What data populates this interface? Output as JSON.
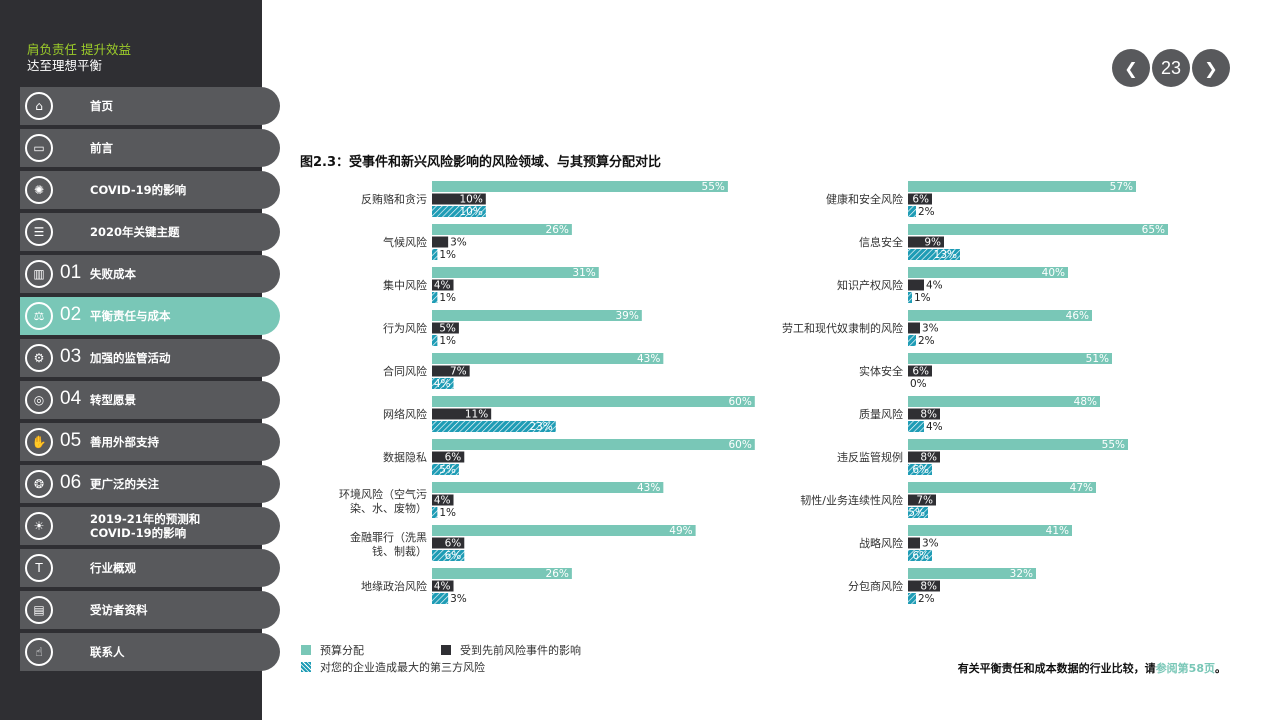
{
  "sidebar": {
    "brand_line1": "肩负责任 提升效益",
    "brand_line2": "达至理想平衡",
    "items": [
      {
        "label": "首页",
        "number": "",
        "icon": "home-icon",
        "glyph": "⌂"
      },
      {
        "label": "前言",
        "number": "",
        "icon": "speech-bubble-icon",
        "glyph": "▭"
      },
      {
        "label": "COVID-19的影响",
        "number": "",
        "icon": "virus-icon",
        "glyph": "✺"
      },
      {
        "label": "2020年关键主题",
        "number": "",
        "icon": "list-icon",
        "glyph": "☰"
      },
      {
        "label": "失败成本",
        "number": "01",
        "icon": "buildings-icon",
        "glyph": "▥"
      },
      {
        "label": "平衡责任与成本",
        "number": "02",
        "icon": "scales-icon",
        "glyph": "⚖"
      },
      {
        "label": "加强的监管活动",
        "number": "03",
        "icon": "gears-icon",
        "glyph": "⚙"
      },
      {
        "label": "转型愿景",
        "number": "04",
        "icon": "target-icon",
        "glyph": "◎"
      },
      {
        "label": "善用外部支持",
        "number": "05",
        "icon": "handshake-icon",
        "glyph": "✋"
      },
      {
        "label": "更广泛的关注",
        "number": "06",
        "icon": "lifebuoy-icon",
        "glyph": "❂"
      },
      {
        "label": "2019-21年的预测和\nCOVID-19的影响",
        "number": "",
        "icon": "virus-sun-icon",
        "glyph": "☀"
      },
      {
        "label": "行业概观",
        "number": "",
        "icon": "hammer-icon",
        "glyph": "T"
      },
      {
        "label": "受访者资料",
        "number": "",
        "icon": "id-card-icon",
        "glyph": "▤"
      },
      {
        "label": "联系人",
        "number": "",
        "icon": "hand-contact-icon",
        "glyph": "☝"
      }
    ],
    "active_index": 5
  },
  "pager": {
    "page": "23",
    "prev_icon": "chevron-left-icon",
    "next_icon": "chevron-right-icon"
  },
  "figure_title": "图2.3：受事件和新兴风险影响的风险领域、与其预算分配对比",
  "legend": {
    "budget": "预算分配",
    "impacted": "受到先前风险事件的影响",
    "third_party": "对您的企业造成最大的第三方风险"
  },
  "footnote": {
    "text": "有关平衡责任和成本数据的行业比较，请",
    "link": "参阅第58页",
    "end": "。"
  },
  "colors": {
    "budget": "#79c7b7",
    "impacted": "#2f2f33",
    "third_party": "#1e9cb5",
    "sidebar": "#2f2f33",
    "nav": "#58595c",
    "active": "#79c7b7"
  },
  "chart_data": [
    {
      "type": "bar",
      "orientation": "horizontal",
      "categories": [
        "反贿赂和贪污",
        "气候风险",
        "集中风险",
        "行为风险",
        "合同风险",
        "网络风险",
        "数据隐私",
        "环境风险（空气污染、水、废物）",
        "金融罪行（洗黑钱、制裁）",
        "地缘政治风险"
      ],
      "series": [
        {
          "name": "预算分配",
          "values": [
            55,
            26,
            31,
            39,
            43,
            60,
            60,
            43,
            49,
            26
          ]
        },
        {
          "name": "受到先前风险事件的影响",
          "values": [
            10,
            3,
            4,
            5,
            7,
            11,
            6,
            4,
            6,
            4
          ]
        },
        {
          "name": "对您的企业造成最大的第三方风险",
          "values": [
            10,
            1,
            1,
            1,
            4,
            23,
            5,
            1,
            6,
            3
          ]
        }
      ],
      "value_suffix": "%",
      "xlim": [
        0,
        60
      ]
    },
    {
      "type": "bar",
      "orientation": "horizontal",
      "categories": [
        "健康和安全风险",
        "信息安全",
        "知识产权风险",
        "劳工和现代奴隶制的风险",
        "实体安全",
        "质量风险",
        "违反监管规例",
        "韧性/业务连续性风险",
        "战略风险",
        "分包商风险"
      ],
      "series": [
        {
          "name": "预算分配",
          "values": [
            57,
            65,
            40,
            46,
            51,
            48,
            55,
            47,
            41,
            32
          ]
        },
        {
          "name": "受到先前风险事件的影响",
          "values": [
            6,
            9,
            4,
            3,
            6,
            8,
            8,
            7,
            3,
            8
          ]
        },
        {
          "name": "对您的企业造成最大的第三方风险",
          "values": [
            2,
            13,
            1,
            2,
            0,
            4,
            6,
            5,
            6,
            2
          ]
        }
      ],
      "value_suffix": "%",
      "xlim": [
        0,
        65
      ]
    }
  ]
}
